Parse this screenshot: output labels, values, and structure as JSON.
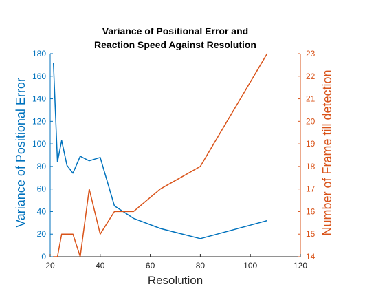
{
  "chart_data": {
    "type": "line",
    "title": [
      "Variance of Positional Error and",
      "Reaction Speed Against Resolution"
    ],
    "xlabel": "Resolution",
    "ylabel_left": "Variance of Positional Error",
    "ylabel_right": "Number of Frame till detection",
    "xlim": [
      20,
      120
    ],
    "ylim_left": [
      0,
      180
    ],
    "ylim_right": [
      14,
      23
    ],
    "xticks": [
      "20",
      "40",
      "60",
      "80",
      "100",
      "120"
    ],
    "yticks_left": [
      "0",
      "20",
      "40",
      "60",
      "80",
      "100",
      "120",
      "140",
      "160",
      "180"
    ],
    "yticks_right": [
      "14",
      "15",
      "16",
      "17",
      "18",
      "19",
      "20",
      "21",
      "22",
      "23"
    ],
    "grid": false,
    "legend": "none",
    "series": [
      {
        "axis": "left",
        "color": "#0072BD",
        "x": [
          21.3,
          22.9,
          24.6,
          26.7,
          29.1,
          32.0,
          35.6,
          40.0,
          45.7,
          53.3,
          64.0,
          80.0,
          106.7
        ],
        "y": [
          172,
          84,
          103,
          81,
          74,
          89,
          85,
          88,
          45,
          34,
          25,
          16,
          32
        ]
      },
      {
        "axis": "right",
        "color": "#D95319",
        "x": [
          21.3,
          22.9,
          24.6,
          26.7,
          29.1,
          32.0,
          35.6,
          40.0,
          45.7,
          53.3,
          64.0,
          80.0,
          106.7
        ],
        "y": [
          14,
          14,
          15,
          15,
          15,
          14,
          17,
          15,
          16,
          16,
          17,
          18,
          23
        ]
      }
    ]
  }
}
